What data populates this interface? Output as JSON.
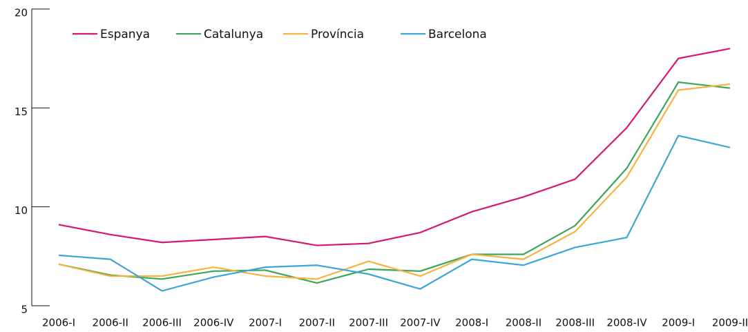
{
  "chart_data": {
    "type": "line",
    "categories": [
      "2006-I",
      "2006-II",
      "2006-III",
      "2006-IV",
      "2007-I",
      "2007-II",
      "2007-III",
      "2007-IV",
      "2008-I",
      "2008-II",
      "2008-III",
      "2008-IV",
      "2009-I",
      "2009-II"
    ],
    "series": [
      {
        "name": "Espanya",
        "color": "#d6176f",
        "values": [
          9.1,
          8.6,
          8.2,
          8.35,
          8.5,
          8.05,
          8.15,
          8.7,
          9.75,
          10.5,
          11.4,
          14.0,
          17.5,
          18.0
        ]
      },
      {
        "name": "Catalunya",
        "color": "#3aa655",
        "values": [
          7.1,
          6.55,
          6.35,
          6.75,
          6.8,
          6.15,
          6.85,
          6.75,
          7.6,
          7.6,
          9.05,
          11.95,
          16.3,
          16.0
        ]
      },
      {
        "name": "Província",
        "color": "#f6b23c",
        "values": [
          7.1,
          6.5,
          6.5,
          6.95,
          6.5,
          6.35,
          7.25,
          6.5,
          7.6,
          7.35,
          8.75,
          11.5,
          15.9,
          16.2
        ]
      },
      {
        "name": "Barcelona",
        "color": "#3aa6d6",
        "values": [
          7.55,
          7.35,
          5.75,
          6.45,
          6.95,
          7.05,
          6.6,
          5.85,
          7.35,
          7.05,
          7.95,
          8.45,
          13.6,
          13.0
        ]
      }
    ],
    "ylim": [
      5,
      20
    ],
    "yticks": [
      5,
      10,
      15,
      20
    ],
    "legend": "top-left"
  }
}
